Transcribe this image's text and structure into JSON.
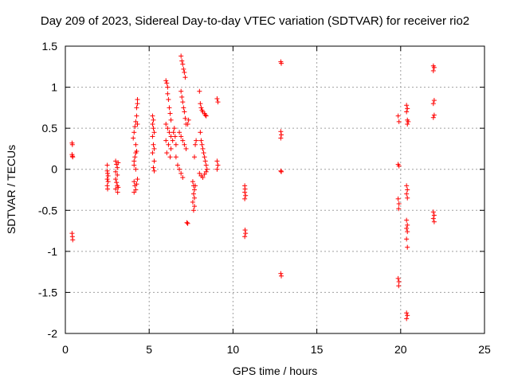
{
  "chart_data": {
    "type": "scatter",
    "title": "Day 209 of 2023, Sidereal Day-to-day VTEC variation (SDTVAR) for receiver rio2",
    "xlabel": "GPS time / hours",
    "ylabel": "SDTVAR / TECUs",
    "xlim": [
      0,
      25
    ],
    "ylim": [
      -2,
      1.5
    ],
    "x_ticks": [
      0,
      5,
      10,
      15,
      20,
      25
    ],
    "x_tick_labels": [
      "0",
      "5",
      "10",
      "15",
      "20",
      "25"
    ],
    "y_ticks": [
      -2,
      -1.5,
      -1,
      -0.5,
      0,
      0.5,
      1,
      1.5
    ],
    "y_tick_labels": [
      "-2",
      "-1.5",
      "-1",
      "-0.5",
      "0",
      "0.5",
      "1",
      "1.5"
    ],
    "grid": true,
    "marker": "plus",
    "marker_color": "#ff0000",
    "series": [
      {
        "name": "SDTVAR",
        "points": [
          [
            0.4,
            0.32
          ],
          [
            0.42,
            0.3
          ],
          [
            0.4,
            0.18
          ],
          [
            0.42,
            0.16
          ],
          [
            0.44,
            0.15
          ],
          [
            0.4,
            -0.78
          ],
          [
            0.42,
            -0.82
          ],
          [
            0.44,
            -0.86
          ],
          [
            2.5,
            0.05
          ],
          [
            2.5,
            -0.02
          ],
          [
            2.52,
            -0.05
          ],
          [
            2.55,
            -0.08
          ],
          [
            2.5,
            -0.12
          ],
          [
            2.55,
            -0.15
          ],
          [
            2.5,
            -0.2
          ],
          [
            2.52,
            -0.24
          ],
          [
            3.0,
            0.1
          ],
          [
            3.05,
            0.06
          ],
          [
            3.1,
            0.02
          ],
          [
            3.0,
            -0.03
          ],
          [
            3.1,
            -0.07
          ],
          [
            3.0,
            -0.12
          ],
          [
            3.05,
            -0.16
          ],
          [
            3.1,
            -0.2
          ],
          [
            3.0,
            -0.24
          ],
          [
            3.12,
            -0.28
          ],
          [
            3.15,
            0.08
          ],
          [
            3.15,
            -0.22
          ],
          [
            4.05,
            0.38
          ],
          [
            4.1,
            0.45
          ],
          [
            4.15,
            0.52
          ],
          [
            4.2,
            0.58
          ],
          [
            4.25,
            0.65
          ],
          [
            4.25,
            0.75
          ],
          [
            4.3,
            0.8
          ],
          [
            4.3,
            0.85
          ],
          [
            4.1,
            0.1
          ],
          [
            4.15,
            0.15
          ],
          [
            4.2,
            0.2
          ],
          [
            4.25,
            0.22
          ],
          [
            4.1,
            0.05
          ],
          [
            4.2,
            0.0
          ],
          [
            4.1,
            -0.15
          ],
          [
            4.15,
            -0.2
          ],
          [
            4.2,
            -0.25
          ],
          [
            4.25,
            -0.18
          ],
          [
            4.1,
            -0.28
          ],
          [
            4.3,
            -0.12
          ],
          [
            4.3,
            0.55
          ],
          [
            4.2,
            0.3
          ],
          [
            5.2,
            0.65
          ],
          [
            5.25,
            0.6
          ],
          [
            5.2,
            0.55
          ],
          [
            5.25,
            0.5
          ],
          [
            5.3,
            0.45
          ],
          [
            5.2,
            0.4
          ],
          [
            5.25,
            0.3
          ],
          [
            5.3,
            0.25
          ],
          [
            5.2,
            0.2
          ],
          [
            5.3,
            0.1
          ],
          [
            5.25,
            0.02
          ],
          [
            5.3,
            -0.02
          ],
          [
            6.0,
            1.08
          ],
          [
            6.05,
            1.05
          ],
          [
            6.1,
            1.0
          ],
          [
            6.1,
            0.92
          ],
          [
            6.15,
            0.85
          ],
          [
            6.2,
            0.75
          ],
          [
            6.25,
            0.68
          ],
          [
            6.3,
            0.6
          ],
          [
            6.0,
            0.55
          ],
          [
            6.1,
            0.5
          ],
          [
            6.2,
            0.45
          ],
          [
            6.3,
            0.4
          ],
          [
            6.0,
            0.35
          ],
          [
            6.15,
            0.3
          ],
          [
            6.3,
            0.25
          ],
          [
            6.05,
            0.2
          ],
          [
            6.25,
            0.15
          ],
          [
            6.4,
            0.35
          ],
          [
            6.45,
            0.45
          ],
          [
            6.5,
            0.5
          ],
          [
            6.55,
            0.4
          ],
          [
            6.6,
            0.3
          ],
          [
            6.6,
            0.15
          ],
          [
            6.7,
            0.05
          ],
          [
            6.8,
            0.0
          ],
          [
            6.9,
            -0.05
          ],
          [
            7.0,
            -0.1
          ],
          [
            6.9,
            1.38
          ],
          [
            6.95,
            1.32
          ],
          [
            7.0,
            1.28
          ],
          [
            7.05,
            1.22
          ],
          [
            7.1,
            1.18
          ],
          [
            7.15,
            1.12
          ],
          [
            6.9,
            0.95
          ],
          [
            6.95,
            0.88
          ],
          [
            7.0,
            0.82
          ],
          [
            7.05,
            0.75
          ],
          [
            7.1,
            0.7
          ],
          [
            7.15,
            0.62
          ],
          [
            7.2,
            0.55
          ],
          [
            6.8,
            0.45
          ],
          [
            6.9,
            0.4
          ],
          [
            7.0,
            0.35
          ],
          [
            7.1,
            0.3
          ],
          [
            7.2,
            0.25
          ],
          [
            7.3,
            0.55
          ],
          [
            7.35,
            0.6
          ],
          [
            7.25,
            -0.65
          ],
          [
            7.3,
            -0.66
          ],
          [
            7.6,
            -0.15
          ],
          [
            7.65,
            -0.2
          ],
          [
            7.7,
            -0.25
          ],
          [
            7.65,
            -0.3
          ],
          [
            7.7,
            -0.35
          ],
          [
            7.6,
            -0.4
          ],
          [
            7.7,
            -0.45
          ],
          [
            7.65,
            -0.5
          ],
          [
            7.7,
            0.15
          ],
          [
            7.75,
            0.3
          ],
          [
            7.8,
            0.35
          ],
          [
            7.75,
            -0.2
          ],
          [
            8.0,
            0.95
          ],
          [
            8.05,
            0.8
          ],
          [
            8.1,
            0.75
          ],
          [
            8.15,
            0.72
          ],
          [
            8.2,
            0.7
          ],
          [
            8.3,
            0.68
          ],
          [
            8.35,
            0.66
          ],
          [
            8.4,
            0.65
          ],
          [
            8.05,
            0.45
          ],
          [
            8.1,
            0.35
          ],
          [
            8.15,
            0.3
          ],
          [
            8.2,
            0.25
          ],
          [
            8.25,
            0.2
          ],
          [
            8.3,
            0.15
          ],
          [
            8.35,
            0.1
          ],
          [
            8.4,
            0.05
          ],
          [
            8.0,
            -0.05
          ],
          [
            8.1,
            -0.08
          ],
          [
            8.2,
            -0.1
          ],
          [
            8.3,
            -0.06
          ],
          [
            8.4,
            -0.03
          ],
          [
            8.45,
            0.0
          ],
          [
            9.05,
            0.86
          ],
          [
            9.1,
            0.82
          ],
          [
            9.05,
            0.1
          ],
          [
            9.1,
            0.05
          ],
          [
            9.05,
            0.0
          ],
          [
            10.7,
            -0.2
          ],
          [
            10.72,
            -0.24
          ],
          [
            10.7,
            -0.28
          ],
          [
            10.75,
            -0.32
          ],
          [
            10.7,
            -0.36
          ],
          [
            10.72,
            -0.74
          ],
          [
            10.75,
            -0.78
          ],
          [
            10.7,
            -0.82
          ],
          [
            12.85,
            1.31
          ],
          [
            12.88,
            1.29
          ],
          [
            12.85,
            0.46
          ],
          [
            12.88,
            0.42
          ],
          [
            12.85,
            0.38
          ],
          [
            12.85,
            -0.02
          ],
          [
            12.88,
            -0.03
          ],
          [
            12.85,
            -1.27
          ],
          [
            12.88,
            -1.3
          ],
          [
            19.85,
            0.65
          ],
          [
            19.9,
            0.58
          ],
          [
            19.85,
            0.06
          ],
          [
            19.9,
            0.04
          ],
          [
            19.85,
            -0.36
          ],
          [
            19.9,
            -0.42
          ],
          [
            19.88,
            -0.48
          ],
          [
            19.85,
            -1.33
          ],
          [
            19.9,
            -1.37
          ],
          [
            19.88,
            -1.42
          ],
          [
            20.35,
            0.78
          ],
          [
            20.4,
            0.74
          ],
          [
            20.35,
            0.7
          ],
          [
            20.4,
            0.6
          ],
          [
            20.45,
            0.58
          ],
          [
            20.4,
            0.55
          ],
          [
            20.35,
            -0.2
          ],
          [
            20.4,
            -0.25
          ],
          [
            20.35,
            -0.3
          ],
          [
            20.4,
            -0.35
          ],
          [
            20.35,
            -0.62
          ],
          [
            20.4,
            -0.68
          ],
          [
            20.35,
            -0.72
          ],
          [
            20.4,
            -0.76
          ],
          [
            20.35,
            -0.85
          ],
          [
            20.4,
            -0.95
          ],
          [
            20.35,
            -1.75
          ],
          [
            20.4,
            -1.78
          ],
          [
            20.35,
            -1.82
          ],
          [
            21.95,
            1.26
          ],
          [
            22.0,
            1.24
          ],
          [
            21.95,
            1.2
          ],
          [
            22.0,
            0.84
          ],
          [
            21.95,
            0.8
          ],
          [
            22.0,
            0.66
          ],
          [
            21.95,
            0.63
          ],
          [
            21.95,
            -0.52
          ],
          [
            22.0,
            -0.56
          ],
          [
            21.95,
            -0.6
          ],
          [
            22.0,
            -0.64
          ]
        ]
      }
    ]
  }
}
